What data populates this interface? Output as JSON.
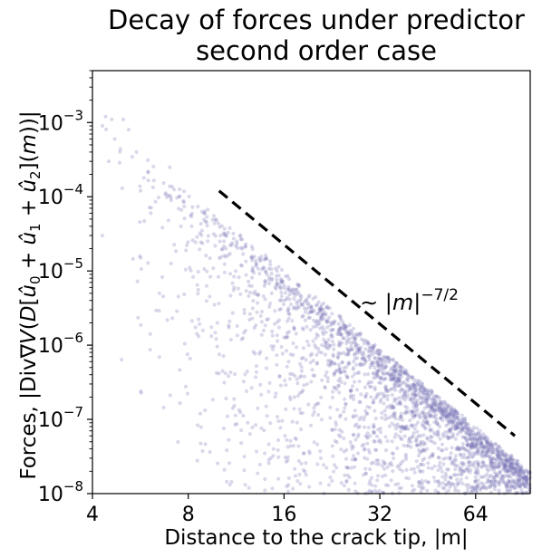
{
  "chart_data": {
    "type": "scatter",
    "title": [
      "Decay of forces under predictor",
      "second order case"
    ],
    "xlabel": "Distance to the crack tip, |m|",
    "ylabel": "Forces, |Div∇V(D[û0 + û1 + û2](m))|",
    "x_scale": "log2",
    "y_scale": "log10",
    "xlim": [
      4,
      95
    ],
    "ylim": [
      1e-08,
      0.005
    ],
    "x_ticks": [
      4,
      8,
      16,
      32,
      64
    ],
    "x_tick_labels": [
      "4",
      "8",
      "16",
      "32",
      "64"
    ],
    "y_ticks": [
      1e-08,
      1e-07,
      1e-06,
      1e-05,
      0.0001,
      0.001
    ],
    "y_tick_labels": [
      {
        "base": "10",
        "exp": "−8"
      },
      {
        "base": "10",
        "exp": "−7"
      },
      {
        "base": "10",
        "exp": "−6"
      },
      {
        "base": "10",
        "exp": "−5"
      },
      {
        "base": "10",
        "exp": "−4"
      },
      {
        "base": "10",
        "exp": "−3"
      }
    ],
    "point_color": "#7b75b8",
    "point_opacity": 0.28,
    "scatter_sample": [
      {
        "x": 4.4,
        "y": 0.0012
      },
      {
        "x": 4.6,
        "y": 0.0011
      },
      {
        "x": 4.3,
        "y": 0.0009
      },
      {
        "x": 4.7,
        "y": 0.0006
      },
      {
        "x": 4.5,
        "y": 0.0003
      },
      {
        "x": 4.3,
        "y": 3e-05
      },
      {
        "x": 5.0,
        "y": 0.0011
      },
      {
        "x": 5.2,
        "y": 0.0008
      },
      {
        "x": 5.5,
        "y": 0.0004
      },
      {
        "x": 5.8,
        "y": 0.00018
      },
      {
        "x": 6.1,
        "y": 6e-05
      },
      {
        "x": 6.5,
        "y": 5e-06
      },
      {
        "x": 7.0,
        "y": 0.00025
      },
      {
        "x": 7.5,
        "y": 0.0001
      },
      {
        "x": 8.2,
        "y": 4e-05
      },
      {
        "x": 9.0,
        "y": 6e-05
      },
      {
        "x": 10.5,
        "y": 2e-05
      },
      {
        "x": 12.0,
        "y": 3e-06
      },
      {
        "x": 16.0,
        "y": 4e-06
      },
      {
        "x": 20.0,
        "y": 1e-06
      },
      {
        "x": 30.0,
        "y": 2e-07
      },
      {
        "x": 45.0,
        "y": 4e-08
      },
      {
        "x": 64.0,
        "y": 1.5e-08
      },
      {
        "x": 90.0,
        "y": 2e-08
      }
    ],
    "upper_envelope": {
      "prefactor": 0.0011,
      "exponent": -3.5
    },
    "reference_line": {
      "style": "dashed",
      "color": "#000000",
      "x": [
        10.0,
        85.0
      ],
      "y": [
        0.00012,
        6e-08
      ],
      "exponent": -3.5
    },
    "annotation": {
      "prefix": "∼ |",
      "italic": "m",
      "suffix": "|",
      "sup": "−7/2",
      "x": 32,
      "y": 3e-06
    }
  }
}
